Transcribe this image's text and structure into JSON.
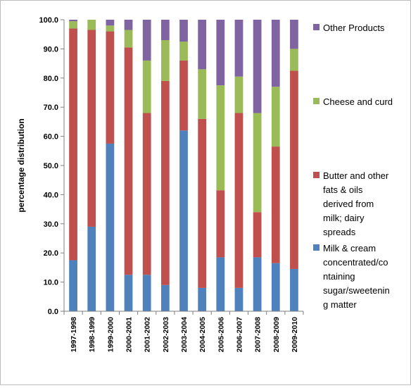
{
  "chart_data": {
    "type": "bar",
    "stacked": true,
    "title": "",
    "xlabel": "",
    "ylabel": "percentage distribution",
    "ylim": [
      0,
      100
    ],
    "yticks": [
      "0.0",
      "10.0",
      "20.0",
      "30.0",
      "40.0",
      "50.0",
      "60.0",
      "70.0",
      "80.0",
      "90.0",
      "100.0"
    ],
    "grid": false,
    "legend_position": "right",
    "categories": [
      "1997-1998",
      "1998-1999",
      "1999-2000",
      "2000-2001",
      "2001-2002",
      "2002-2003",
      "2003-2004",
      "2004-2005",
      "2005-2006",
      "2006-2007",
      "2007-2008",
      "2008-2009",
      "2009-2010"
    ],
    "series": [
      {
        "name": "Milk & cream concentrated/containing sugar/sweetening matter",
        "legend_lines": [
          "Milk & cream",
          "concentrated/co",
          "ntaining",
          "sugar/sweetenin",
          "g matter"
        ],
        "color": "#4f81bd",
        "values": [
          17.5,
          29,
          57.5,
          12.5,
          12.5,
          9,
          62,
          8,
          18.5,
          8,
          18.5,
          16.5,
          14.5
        ]
      },
      {
        "name": "Butter and other fats & oils derived from milk; dairy spreads",
        "legend_lines": [
          "Butter and other",
          "fats & oils",
          "derived from",
          "milk; dairy",
          "spreads"
        ],
        "color": "#c0504d",
        "values": [
          79.5,
          67.5,
          38.5,
          78,
          55.5,
          70,
          24,
          58,
          23,
          60,
          15.5,
          40,
          68
        ]
      },
      {
        "name": "Cheese and curd",
        "legend_lines": [
          "Cheese and curd"
        ],
        "color": "#9bbb59",
        "values": [
          2.5,
          3.5,
          2,
          6,
          18,
          14,
          6.5,
          17,
          36,
          12.5,
          34,
          20.5,
          7.5
        ]
      },
      {
        "name": "Other Products",
        "legend_lines": [
          "Other Products"
        ],
        "color": "#8064a2",
        "values": [
          0.5,
          0,
          2,
          3.5,
          14,
          7,
          7.5,
          17,
          22.5,
          19.5,
          32,
          23,
          10
        ]
      }
    ]
  }
}
